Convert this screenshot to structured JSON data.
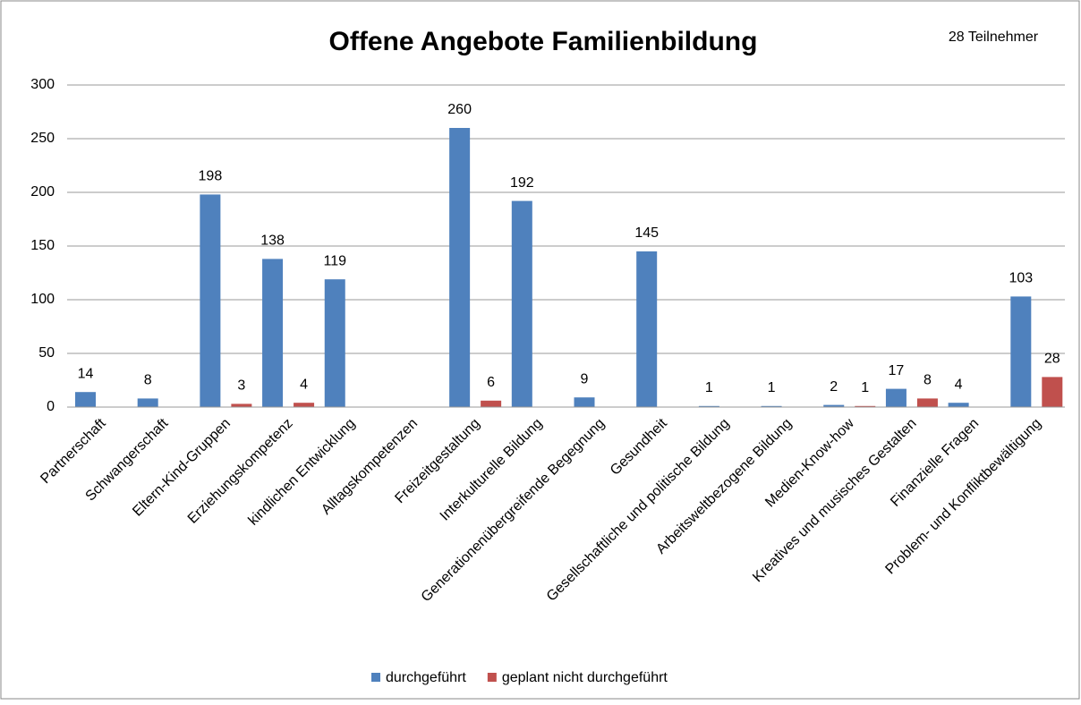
{
  "chart_data": {
    "type": "bar",
    "title": "Offene Angebote Familienbildung",
    "annotation": "28 Teilnehmer",
    "categories": [
      "Partnerschaft",
      "Schwangerschaft",
      "Eltern-Kind-Gruppen",
      "Erziehungskompetenz",
      "kindlichen Entwicklung",
      "Alltagskompetenzen",
      "Freizeitgestaltung",
      "Interkulturelle Bildung",
      "Generationenübergreifende Begegnung",
      "Gesundheit",
      "Gesellschaftliche und politische Bildung",
      "Arbeitsweltbezogene Bildung",
      "Medien-Know-how",
      "Kreatives und musisches Gestalten",
      "Finanzielle Fragen",
      "Problem- und Konfliktbewältigung"
    ],
    "series": [
      {
        "name": "durchgeführt",
        "color": "#4f81bd",
        "values": [
          14,
          8,
          198,
          138,
          119,
          null,
          260,
          192,
          9,
          145,
          1,
          1,
          2,
          17,
          4,
          103
        ]
      },
      {
        "name": "geplant nicht durchgeführt",
        "color": "#c0504d",
        "values": [
          null,
          null,
          3,
          4,
          null,
          null,
          6,
          null,
          null,
          null,
          null,
          null,
          1,
          8,
          null,
          28
        ]
      }
    ],
    "ylim": [
      0,
      300
    ],
    "yticks": [
      0,
      50,
      100,
      150,
      200,
      250,
      300
    ],
    "grid": true,
    "legend": "bottom"
  }
}
